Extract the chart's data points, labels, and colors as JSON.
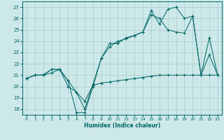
{
  "xlabel": "Humidex (Indice chaleur)",
  "xlim": [
    -0.5,
    23.5
  ],
  "ylim": [
    17.5,
    27.5
  ],
  "xticks": [
    0,
    1,
    2,
    3,
    4,
    5,
    6,
    7,
    8,
    9,
    10,
    11,
    12,
    13,
    14,
    15,
    16,
    17,
    18,
    19,
    20,
    21,
    22,
    23
  ],
  "yticks": [
    18,
    19,
    20,
    21,
    22,
    23,
    24,
    25,
    26,
    27
  ],
  "bg_color": "#cce8e8",
  "line_color": "#006666",
  "grid_color": "#aacccc",
  "series1_x": [
    0,
    1,
    2,
    3,
    4,
    5,
    6,
    7,
    8,
    9,
    10,
    11,
    12,
    13,
    14,
    15,
    16,
    17,
    18,
    19,
    20,
    21,
    22,
    23
  ],
  "series1_y": [
    20.7,
    21.0,
    21.0,
    21.2,
    21.5,
    20.0,
    19.5,
    18.7,
    20.1,
    20.3,
    20.4,
    20.5,
    20.6,
    20.7,
    20.8,
    20.9,
    21.0,
    21.0,
    21.0,
    21.0,
    21.0,
    21.0,
    21.0,
    21.0
  ],
  "series2_x": [
    0,
    1,
    2,
    3,
    4,
    5,
    6,
    7,
    8,
    9,
    10,
    11,
    12,
    13,
    14,
    15,
    16,
    17,
    18,
    19,
    20,
    21,
    22,
    23
  ],
  "series2_y": [
    20.7,
    21.0,
    21.0,
    21.5,
    21.5,
    20.5,
    19.5,
    18.0,
    20.2,
    22.5,
    23.5,
    24.0,
    24.2,
    24.5,
    24.8,
    26.3,
    26.0,
    25.0,
    24.8,
    24.7,
    26.2,
    21.0,
    22.8,
    21.0
  ],
  "series3_x": [
    0,
    1,
    2,
    3,
    4,
    5,
    6,
    7,
    8,
    9,
    10,
    11,
    12,
    13,
    14,
    15,
    16,
    17,
    18,
    19,
    20,
    21,
    22,
    23
  ],
  "series3_y": [
    20.7,
    21.0,
    21.0,
    21.5,
    21.5,
    20.5,
    17.7,
    17.7,
    20.0,
    22.5,
    23.8,
    23.8,
    24.3,
    24.5,
    24.8,
    26.7,
    25.5,
    26.8,
    27.0,
    26.0,
    26.2,
    21.0,
    24.3,
    21.0
  ]
}
